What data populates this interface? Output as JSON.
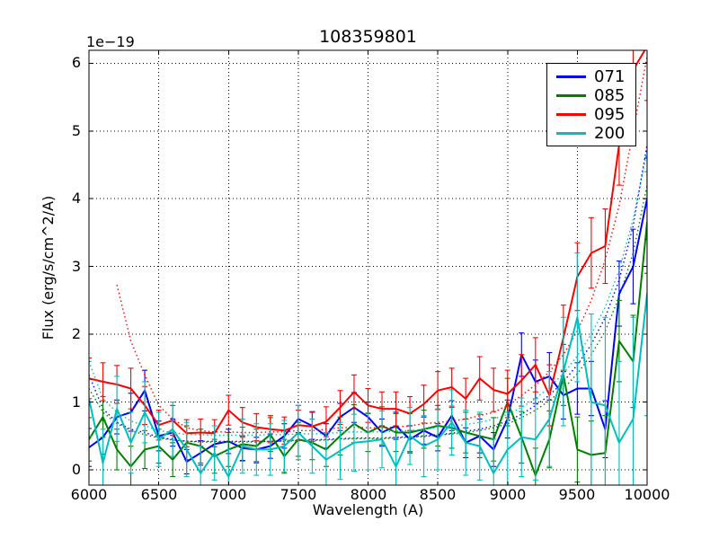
{
  "chart_data": {
    "type": "line",
    "title": "108359801",
    "xlabel": "Wavelength (A)",
    "ylabel": "Flux (erg/s/cm^2/A)",
    "offset_text": "1e−19",
    "xlim": [
      6000,
      10000
    ],
    "ylim": [
      -0.225,
      6.19
    ],
    "xticks": [
      6000,
      6500,
      7000,
      7500,
      8000,
      8500,
      9000,
      9500,
      10000
    ],
    "xtick_labels": [
      "6000",
      "6500",
      "7000",
      "7500",
      "8000",
      "8500",
      "9000",
      "9500",
      "10000"
    ],
    "yticks": [
      0,
      1,
      2,
      3,
      4,
      5,
      6
    ],
    "ytick_labels": [
      "0",
      "1",
      "2",
      "3",
      "4",
      "5",
      "6"
    ],
    "grid": true,
    "grid_linestyle": "dotted",
    "grid_color": "#000000",
    "legend_position": "upper right",
    "flux_unit_scale": "1e-19",
    "x": [
      6000,
      6100,
      6200,
      6300,
      6400,
      6500,
      6600,
      6700,
      6800,
      6900,
      7000,
      7100,
      7200,
      7300,
      7400,
      7500,
      7600,
      7700,
      7800,
      7900,
      8000,
      8100,
      8200,
      8300,
      8400,
      8500,
      8600,
      8700,
      8800,
      8900,
      9000,
      9100,
      9200,
      9300,
      9400,
      9500,
      9600,
      9700,
      9800,
      9900,
      10000
    ],
    "series": [
      {
        "name": "071",
        "color": "#0000ff",
        "values": [
          0.33,
          0.48,
          0.78,
          0.85,
          1.17,
          0.5,
          0.55,
          0.12,
          0.25,
          0.38,
          0.42,
          0.32,
          0.3,
          0.35,
          0.5,
          0.75,
          0.65,
          0.5,
          0.78,
          0.92,
          0.78,
          0.55,
          0.65,
          0.45,
          0.58,
          0.48,
          0.8,
          0.4,
          0.5,
          0.3,
          0.75,
          1.7,
          1.3,
          1.38,
          1.1,
          1.2,
          1.2,
          0.6,
          2.6,
          3.0,
          4.0
        ],
        "errors": [
          0.28,
          0.25,
          0.25,
          0.28,
          0.3,
          0.22,
          0.2,
          0.18,
          0.18,
          0.18,
          0.18,
          0.18,
          0.18,
          0.18,
          0.18,
          0.2,
          0.2,
          0.18,
          0.2,
          0.22,
          0.22,
          0.2,
          0.2,
          0.2,
          0.2,
          0.2,
          0.22,
          0.22,
          0.25,
          0.25,
          0.28,
          0.32,
          0.32,
          0.35,
          0.35,
          0.38,
          0.4,
          0.42,
          0.48,
          0.55,
          0.6
        ],
        "noise": [
          1.4,
          0.9,
          0.7,
          0.6,
          0.55,
          0.48,
          0.45,
          0.42,
          0.42,
          0.42,
          0.42,
          0.42,
          0.42,
          0.42,
          0.43,
          0.44,
          0.44,
          0.45,
          0.46,
          0.47,
          0.47,
          0.47,
          0.48,
          0.49,
          0.5,
          0.52,
          0.54,
          0.57,
          0.6,
          0.65,
          0.72,
          0.82,
          0.95,
          1.1,
          1.3,
          1.55,
          1.85,
          2.25,
          2.8,
          3.6,
          4.8
        ]
      },
      {
        "name": "085",
        "color": "#008000",
        "values": [
          0.45,
          0.78,
          0.3,
          0.05,
          0.3,
          0.35,
          0.15,
          0.4,
          0.35,
          0.2,
          0.3,
          0.38,
          0.35,
          0.52,
          0.2,
          0.45,
          0.4,
          0.3,
          0.5,
          0.68,
          0.55,
          0.65,
          0.55,
          0.55,
          0.6,
          0.65,
          0.62,
          0.55,
          0.5,
          0.45,
          1.0,
          0.48,
          -0.08,
          0.45,
          1.4,
          0.3,
          0.22,
          0.25,
          1.9,
          1.6,
          3.65
        ],
        "errors": [
          0.32,
          0.3,
          0.3,
          0.3,
          0.28,
          0.25,
          0.25,
          0.25,
          0.25,
          0.25,
          0.25,
          0.25,
          0.25,
          0.25,
          0.25,
          0.25,
          0.25,
          0.25,
          0.28,
          0.28,
          0.28,
          0.28,
          0.28,
          0.28,
          0.28,
          0.3,
          0.3,
          0.3,
          0.32,
          0.32,
          0.35,
          0.38,
          0.4,
          0.42,
          0.45,
          0.48,
          0.5,
          0.55,
          0.6,
          0.68,
          0.75
        ],
        "noise": [
          1.2,
          0.85,
          0.68,
          0.58,
          0.52,
          0.47,
          0.44,
          0.42,
          0.41,
          0.41,
          0.41,
          0.41,
          0.41,
          0.42,
          0.42,
          0.43,
          0.43,
          0.44,
          0.45,
          0.46,
          0.46,
          0.46,
          0.47,
          0.48,
          0.49,
          0.51,
          0.53,
          0.55,
          0.58,
          0.62,
          0.68,
          0.77,
          0.88,
          1.02,
          1.2,
          1.42,
          1.7,
          2.05,
          2.55,
          3.2,
          4.2
        ]
      },
      {
        "name": "095",
        "color": "#ff0000",
        "values": [
          1.35,
          1.3,
          1.26,
          1.2,
          0.95,
          0.66,
          0.73,
          0.54,
          0.55,
          0.54,
          0.88,
          0.7,
          0.63,
          0.6,
          0.58,
          0.66,
          0.64,
          0.71,
          0.92,
          1.15,
          0.95,
          0.9,
          0.9,
          0.83,
          0.97,
          1.17,
          1.22,
          1.05,
          1.35,
          1.18,
          1.12,
          1.32,
          1.55,
          1.1,
          1.95,
          2.85,
          3.2,
          3.3,
          4.8,
          5.9,
          6.25
        ],
        "errors": [
          0.3,
          0.28,
          0.28,
          0.3,
          0.28,
          0.22,
          0.22,
          0.2,
          0.2,
          0.2,
          0.22,
          0.22,
          0.2,
          0.2,
          0.2,
          0.22,
          0.22,
          0.22,
          0.25,
          0.25,
          0.25,
          0.25,
          0.25,
          0.25,
          0.28,
          0.28,
          0.28,
          0.3,
          0.32,
          0.32,
          0.35,
          0.38,
          0.4,
          0.45,
          0.48,
          0.5,
          0.52,
          0.55,
          0.6,
          0.7,
          0.8
        ],
        "noise": [
          null,
          null,
          2.73,
          1.9,
          1.4,
          0.95,
          0.75,
          0.62,
          0.58,
          0.56,
          0.56,
          0.55,
          0.55,
          0.56,
          0.56,
          0.58,
          0.58,
          0.6,
          0.62,
          0.63,
          0.62,
          0.62,
          0.63,
          0.65,
          0.68,
          0.7,
          0.72,
          0.75,
          0.8,
          0.85,
          0.95,
          1.1,
          1.25,
          1.45,
          1.7,
          2.05,
          2.5,
          3.1,
          3.9,
          5.0,
          6.1
        ]
      },
      {
        "name": "200",
        "color": "#00bfbf",
        "values": [
          1.05,
          0.1,
          0.9,
          0.4,
          0.85,
          0.45,
          0.6,
          0.3,
          -0.05,
          0.25,
          -0.1,
          0.35,
          0.3,
          0.3,
          0.35,
          0.55,
          0.35,
          0.15,
          0.28,
          0.4,
          0.42,
          0.45,
          0.05,
          0.5,
          0.35,
          0.45,
          0.7,
          0.4,
          0.35,
          -0.05,
          0.3,
          0.48,
          0.45,
          0.75,
          1.45,
          2.25,
          1.0,
          0.95,
          0.4,
          0.75,
          2.6
        ],
        "errors": [
          0.55,
          0.5,
          0.48,
          0.45,
          0.45,
          0.4,
          0.4,
          0.4,
          0.4,
          0.4,
          0.4,
          0.4,
          0.38,
          0.38,
          0.38,
          0.4,
          0.4,
          0.4,
          0.42,
          0.42,
          0.42,
          0.42,
          0.42,
          0.42,
          0.45,
          0.45,
          0.48,
          0.48,
          0.5,
          0.5,
          0.55,
          0.58,
          0.6,
          0.7,
          0.8,
          0.95,
          1.3,
          1.3,
          1.2,
          1.5,
          1.8
        ],
        "noise": [
          1.6,
          1.05,
          0.85,
          0.72,
          0.65,
          0.58,
          0.55,
          0.52,
          0.52,
          0.51,
          0.51,
          0.51,
          0.51,
          0.52,
          0.52,
          0.53,
          0.53,
          0.54,
          0.55,
          0.56,
          0.56,
          0.56,
          0.57,
          0.58,
          0.6,
          0.62,
          0.64,
          0.67,
          0.7,
          0.75,
          0.82,
          0.92,
          1.05,
          1.22,
          1.42,
          1.68,
          2.0,
          2.4,
          2.95,
          3.7,
          4.7
        ]
      }
    ]
  }
}
